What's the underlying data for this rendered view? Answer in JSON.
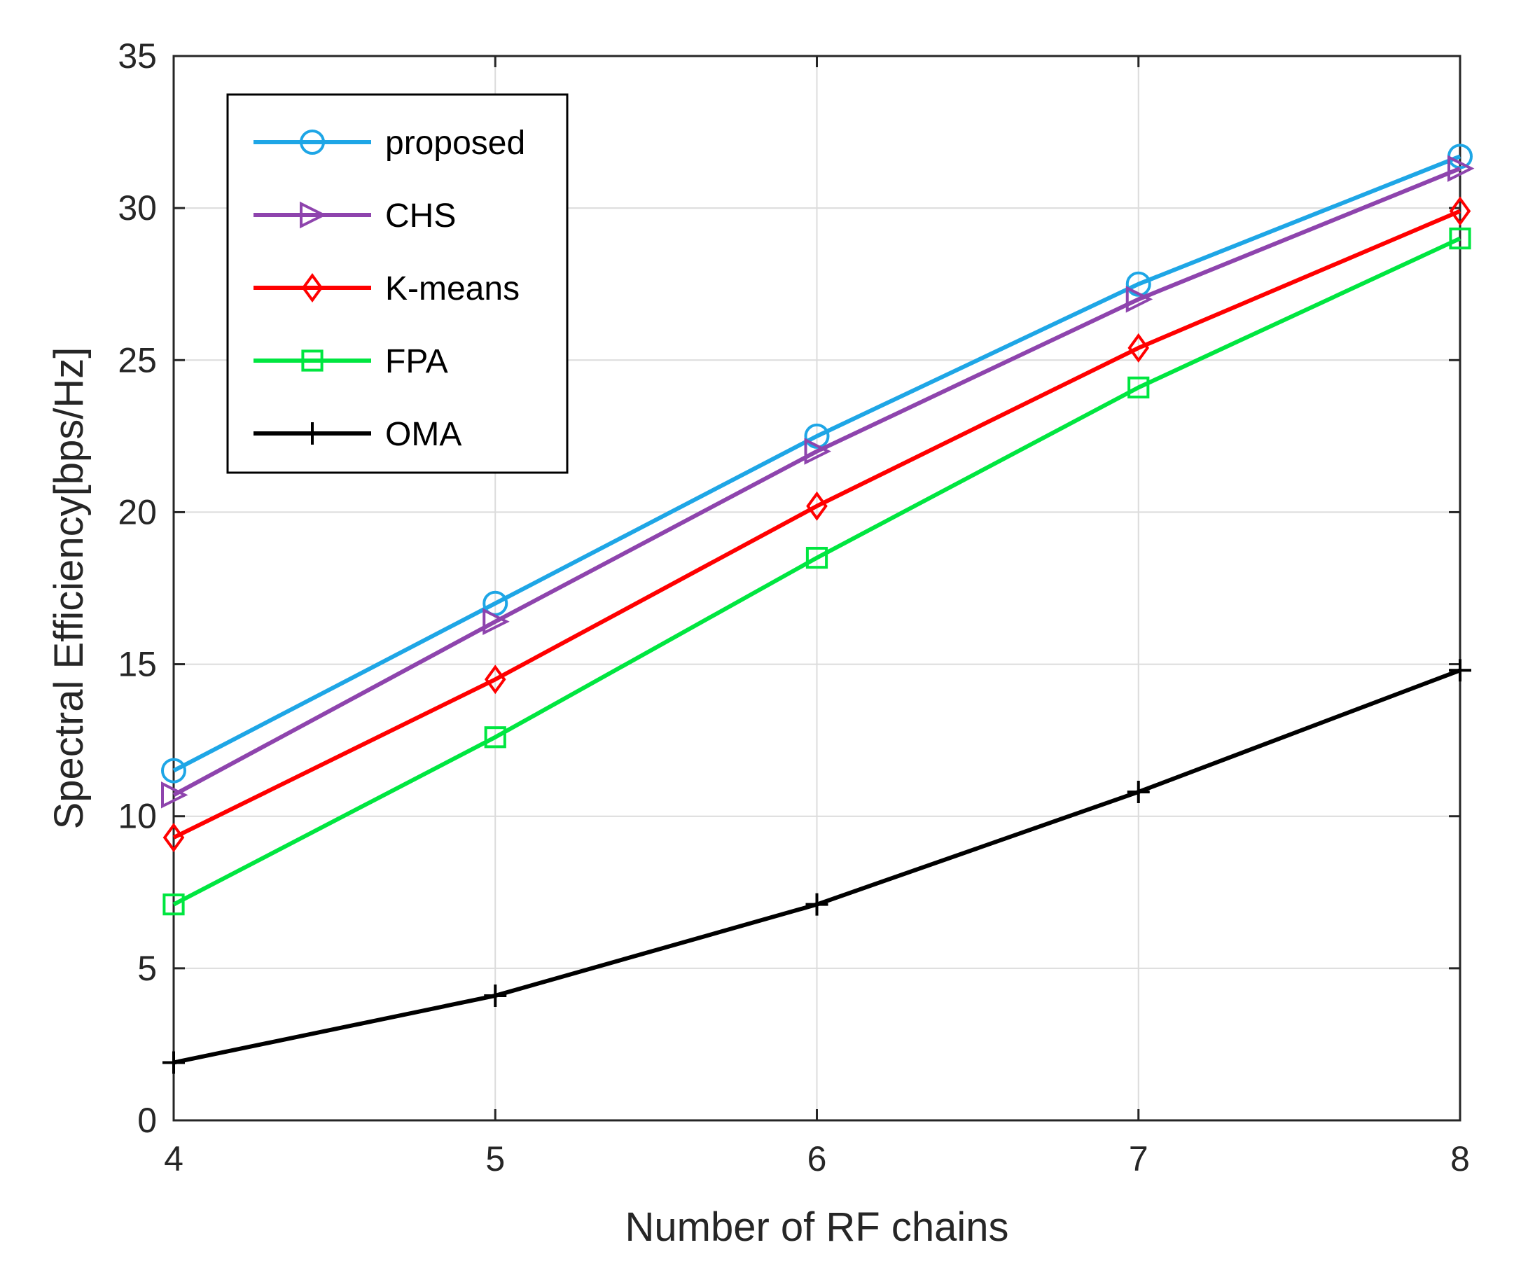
{
  "chart_data": {
    "type": "line",
    "title": "",
    "xlabel": "Number of RF chains",
    "ylabel": "Spectral Efficiency[bps/Hz]",
    "x": [
      4,
      5,
      6,
      7,
      8
    ],
    "xlim": [
      4,
      8
    ],
    "ylim": [
      0,
      35
    ],
    "xticks": [
      4,
      5,
      6,
      7,
      8
    ],
    "yticks": [
      0,
      5,
      10,
      15,
      20,
      25,
      30,
      35
    ],
    "grid": true,
    "legend_position": "top-left",
    "series": [
      {
        "name": "proposed",
        "color": "#1ea6e6",
        "marker": "circle",
        "values": [
          11.5,
          17.0,
          22.5,
          27.5,
          31.7
        ]
      },
      {
        "name": "CHS",
        "color": "#8e44ad",
        "marker": "triangle-right",
        "values": [
          10.7,
          16.4,
          22.0,
          27.0,
          31.3
        ]
      },
      {
        "name": "K-means",
        "color": "#ff0000",
        "marker": "diamond",
        "values": [
          9.3,
          14.5,
          20.2,
          25.4,
          29.9
        ]
      },
      {
        "name": "FPA",
        "color": "#00e640",
        "marker": "square",
        "values": [
          7.1,
          12.6,
          18.5,
          24.1,
          29.0
        ]
      },
      {
        "name": "OMA",
        "color": "#000000",
        "marker": "plus",
        "values": [
          1.9,
          4.1,
          7.1,
          10.8,
          14.8
        ]
      }
    ]
  }
}
